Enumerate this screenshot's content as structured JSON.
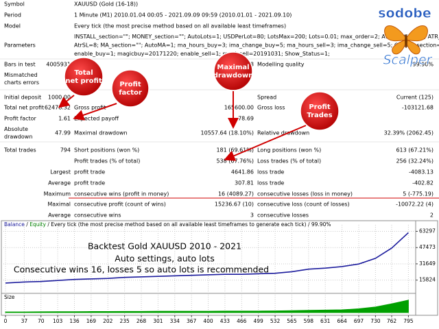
{
  "report": {
    "rows": [
      {
        "label": "Symbol",
        "text": [
          "XAUUSD (Gold (16-18))"
        ]
      },
      {
        "label": "Period",
        "text": [
          "1 Minute (M1) 2010.01.04 00:05 - 2021.09.09 09:59 (2010.01.01 - 2021.09.10)"
        ]
      },
      {
        "label": "Model",
        "text": [
          "Every tick (the most precise method based on all available least timeframes)"
        ]
      },
      {
        "label": "Parameters",
        "text": [
          "INSTALL_section=\"\"; MONEY_section=\"\"; AutoLots=1; USDPerLot=80; LotsMax=200; Lots=0.01; max_order=2; ATR_section=\"\"; ATR_TP=5;",
          "AtrSL=8; MA_section=\"\"; AutoMA=1; ma_hours_buy=3; ima_change_buy=5; ma_hours_sell=3; ima_change_sell=5; ORDER_section=\"\";",
          "enable_buy=1; magicbuy=20171220; enable_sell=1; magicsell=20191031; Show_Status=1;"
        ]
      },
      {
        "label": "Bars in test",
        "value": "4005931",
        "value2": "68",
        "label3": "Modelling quality",
        "value3": "99.90%"
      },
      {
        "label": [
          "Mismatched",
          "charts errors"
        ],
        "value": "0"
      },
      {
        "label": "Initial deposit",
        "value": "1000.00",
        "label3": "Spread",
        "value3": "Current (125)"
      },
      {
        "label": "Total net profit",
        "value": "62478.32",
        "label2": "Gross profit",
        "value2": "165600.00",
        "label3": "Gross loss",
        "value3": "-103121.68"
      },
      {
        "label": "Profit factor",
        "value": "1.61",
        "label2": "Expected payoff",
        "value2": "78.69"
      },
      {
        "label": [
          "Absolute",
          "drawdown"
        ],
        "value": "47.99",
        "label2": "Maximal drawdown",
        "value2": "10557.64 (18.10%)",
        "label3": "Relative drawdown",
        "value3": "32.39% (2062.45)"
      },
      {
        "label": "Total trades",
        "value": "794",
        "label2": "Short positions (won %)",
        "value2": "181 (69.61%)",
        "label3": "Long positions (won %)",
        "value3": "613 (67.21%)"
      },
      {
        "label2": "Profit trades (% of total)",
        "value2": "538 (67.76%)",
        "label3": "Loss trades (% of total)",
        "value3": "256 (32.24%)"
      },
      {
        "prefix": "Largest",
        "label2": "profit trade",
        "value2": "4641.86",
        "label3": "loss trade",
        "value3": "-4083.13"
      },
      {
        "prefix": "Average",
        "label2": "profit trade",
        "value2": "307.81",
        "label3": "loss trade",
        "value3": "-402.82"
      },
      {
        "prefix": "Maximum",
        "label2": "consecutive wins (profit in money)",
        "value2": "16 (4089.27)",
        "label3": "consecutive losses (loss in money)",
        "value3": "5 (-775.19)"
      },
      {
        "prefix": "Maximal",
        "label2": "consecutive profit (count of wins)",
        "value2": "15236.67 (10)",
        "label3": "consecutive loss (count of losses)",
        "value3": "-10072.22 (4)"
      },
      {
        "prefix": "Average",
        "label2": "consecutive wins",
        "value2": "3",
        "label3": "consecutive losses",
        "value3": "2"
      }
    ]
  },
  "callouts": [
    [
      "Total",
      "net profit"
    ],
    [
      "Profit",
      "factor"
    ],
    [
      "Maximal",
      "drawdown"
    ],
    [
      "Profit",
      "Trades"
    ]
  ],
  "logo": {
    "top": "sodobe",
    "bottom": "Scalper"
  },
  "chart_data": {
    "type": "line",
    "legend_rest": [
      " / ",
      "Equity",
      " / Every tick (the most precise method based on all available least timeframes to generate each tick) / 99.90%"
    ],
    "annotations": [
      "Backtest Gold XAUUSD 2010 - 2021",
      "Auto settings, auto lots",
      "Consecutive wins 16, losses 5 so auto lots is recommended"
    ],
    "x": [
      0,
      37,
      70,
      103,
      136,
      169,
      202,
      235,
      268,
      301,
      334,
      367,
      400,
      433,
      466,
      499,
      532,
      565,
      598,
      631,
      664,
      697,
      730,
      762,
      795
    ],
    "series": [
      {
        "name": "Balance",
        "color": "#1a1a9c",
        "values": [
          13000,
          14000,
          14500,
          15500,
          16500,
          17000,
          17500,
          18500,
          19000,
          19500,
          20000,
          20500,
          21000,
          21500,
          21500,
          22000,
          22500,
          24000,
          26500,
          27500,
          29000,
          31500,
          37000,
          47000,
          62000
        ]
      }
    ],
    "xlim": [
      0,
      808
    ],
    "ylim": [
      5600,
      66300
    ],
    "xticks": [
      0,
      37,
      70,
      103,
      136,
      169,
      202,
      235,
      268,
      301,
      334,
      367,
      400,
      433,
      466,
      499,
      532,
      565,
      598,
      631,
      664,
      697,
      730,
      762,
      795
    ],
    "yticks": [
      15824,
      31649,
      47473,
      63297
    ],
    "grid": true,
    "size": {
      "label": "Size",
      "color": "#00a000",
      "ylim": [
        0,
        1.1
      ],
      "values": [
        0.05,
        0.05,
        0.06,
        0.07,
        0.07,
        0.08,
        0.08,
        0.09,
        0.09,
        0.1,
        0.1,
        0.1,
        0.1,
        0.12,
        0.12,
        0.12,
        0.13,
        0.15,
        0.18,
        0.2,
        0.22,
        0.3,
        0.45,
        0.7,
        1.0
      ]
    }
  }
}
